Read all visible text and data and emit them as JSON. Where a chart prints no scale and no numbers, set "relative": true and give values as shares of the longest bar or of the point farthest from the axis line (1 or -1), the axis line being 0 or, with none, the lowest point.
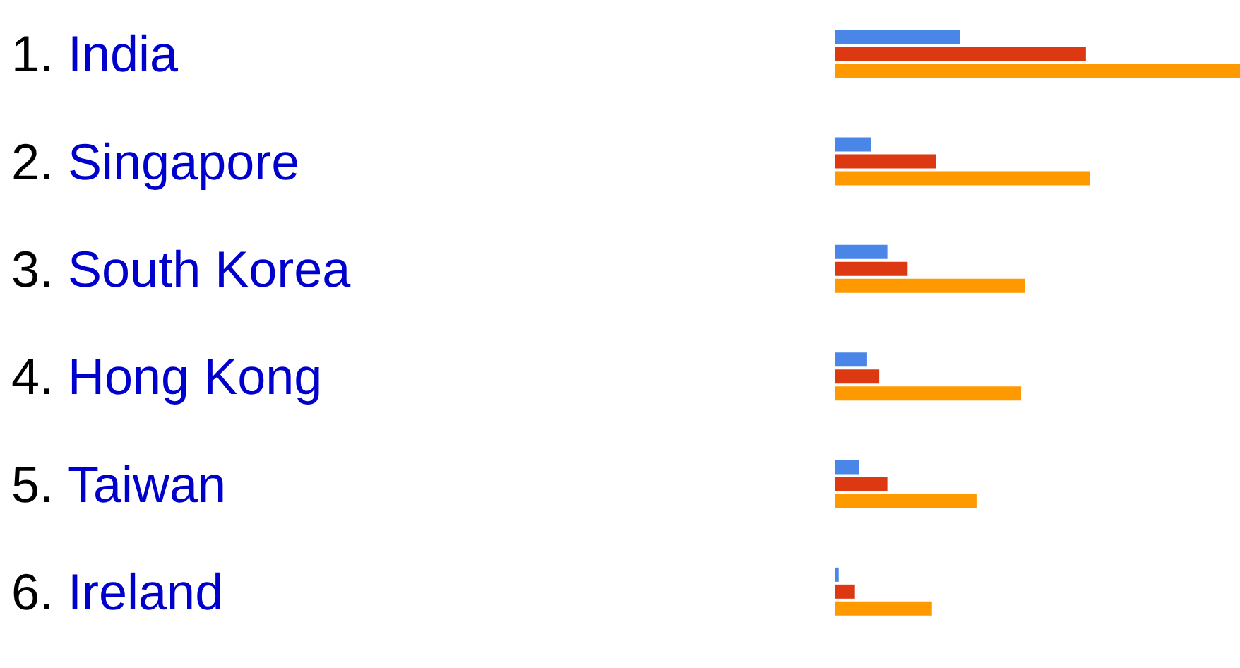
{
  "chart_data": {
    "type": "bar",
    "orientation": "horizontal",
    "relative": true,
    "categories": [
      "1. India",
      "2. Singapore",
      "3. South Korea",
      "4. Hong Kong",
      "5. Taiwan",
      "6. Ireland"
    ],
    "series": [
      {
        "color": "#4a86e8",
        "values": [
          0.31,
          0.09,
          0.13,
          0.08,
          0.06,
          0.01
        ]
      },
      {
        "color": "#dc3912",
        "values": [
          0.62,
          0.25,
          0.18,
          0.11,
          0.13,
          0.05
        ]
      },
      {
        "color": "#ff9900",
        "values": [
          1,
          0.63,
          0.47,
          0.46,
          0.35,
          0.24
        ]
      }
    ]
  }
}
